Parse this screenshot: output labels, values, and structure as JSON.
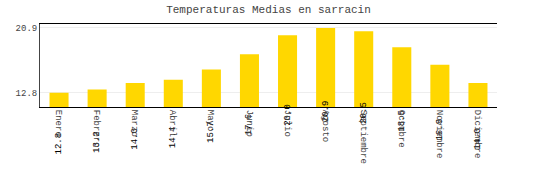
{
  "chart_data": {
    "type": "bar",
    "title": "Temperaturas Medias en sarracin",
    "categories": [
      "Enero",
      "Febrero",
      "Marzo",
      "Abril",
      "Mayo",
      "Junio",
      "Julio",
      "Agosto",
      "Septiembre",
      "Octubre",
      "Noviembre",
      "Diciembre"
    ],
    "values": [
      12.8,
      13.2,
      14.0,
      14.4,
      15.7,
      17.6,
      20.0,
      20.9,
      20.5,
      18.5,
      16.3,
      14.0
    ],
    "value_labels": [
      "12.8",
      "13.2",
      "14.0",
      "14.4",
      "15.7",
      "17.6",
      "20.0",
      "20.9",
      "20.5",
      "18.5",
      "16.3",
      "14.0"
    ],
    "data_labels": true,
    "color": "#FFD700",
    "ylim": [
      11.0,
      21.4
    ],
    "yticks": [
      12.8,
      20.9
    ],
    "y2lim": [
      11.0,
      21.4
    ],
    "y2ticks": [
      12.8,
      20.9
    ],
    "grid": true
  }
}
